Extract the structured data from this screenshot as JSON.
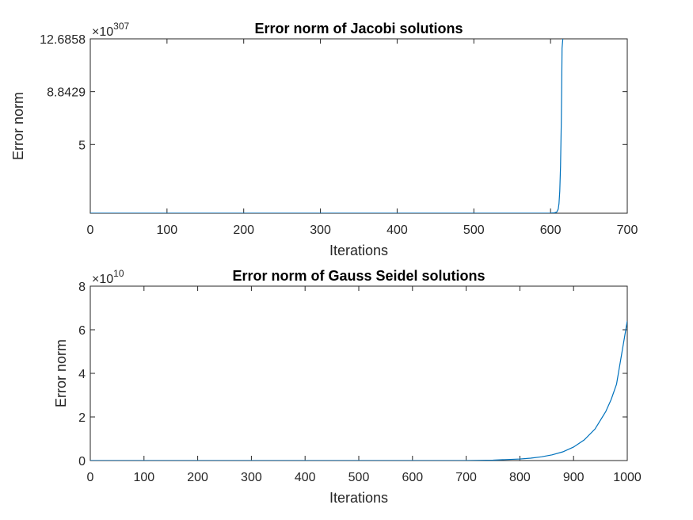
{
  "colors": {
    "series": "#0072BD",
    "axes": "#262626",
    "background": "#ffffff"
  },
  "chart_data": [
    {
      "type": "line",
      "title": "Error norm of Jacobi solutions",
      "xlabel": "Iterations",
      "ylabel": "Error norm",
      "y_exponent_base": "×10",
      "y_exponent_power": "307",
      "xlim": [
        0,
        700
      ],
      "ylim": [
        0,
        12.6858
      ],
      "xticks": [
        0,
        100,
        200,
        300,
        400,
        500,
        600,
        700
      ],
      "xtick_labels": [
        "0",
        "100",
        "200",
        "300",
        "400",
        "500",
        "600",
        "700"
      ],
      "yticks": [
        5,
        8.8429,
        12.6858
      ],
      "ytick_labels": [
        "5",
        "8.8429",
        "12.6858"
      ],
      "grid": false,
      "series": [
        {
          "x": [
            0,
            100,
            200,
            300,
            400,
            500,
            590,
            600,
            605,
            608,
            610,
            611,
            612,
            613,
            614,
            614.5,
            615,
            616
          ],
          "y": [
            0,
            0,
            0,
            0,
            0,
            0,
            0,
            0.01,
            0.03,
            0.08,
            0.3,
            0.7,
            1.6,
            3.4,
            6.6,
            9.0,
            12.0,
            12.6858
          ]
        }
      ]
    },
    {
      "type": "line",
      "title": "Error norm of Gauss Seidel solutions",
      "xlabel": "Iterations",
      "ylabel": "Error norm",
      "y_exponent_base": "×10",
      "y_exponent_power": "10",
      "xlim": [
        0,
        1000
      ],
      "ylim": [
        0,
        8
      ],
      "xticks": [
        0,
        100,
        200,
        300,
        400,
        500,
        600,
        700,
        800,
        900,
        1000
      ],
      "xtick_labels": [
        "0",
        "100",
        "200",
        "300",
        "400",
        "500",
        "600",
        "700",
        "800",
        "900",
        "1000"
      ],
      "yticks": [
        0,
        2,
        4,
        6,
        8
      ],
      "ytick_labels": [
        "0",
        "2",
        "4",
        "6",
        "8"
      ],
      "grid": false,
      "series": [
        {
          "x": [
            0,
            100,
            200,
            300,
            400,
            500,
            600,
            700,
            750,
            800,
            820,
            840,
            860,
            880,
            900,
            920,
            940,
            960,
            970,
            980,
            990,
            1000
          ],
          "y": [
            0,
            0,
            0,
            0,
            0,
            0,
            0,
            0.002,
            0.02,
            0.07,
            0.11,
            0.17,
            0.26,
            0.4,
            0.62,
            0.95,
            1.45,
            2.25,
            2.8,
            3.5,
            4.95,
            6.4
          ]
        }
      ]
    }
  ]
}
